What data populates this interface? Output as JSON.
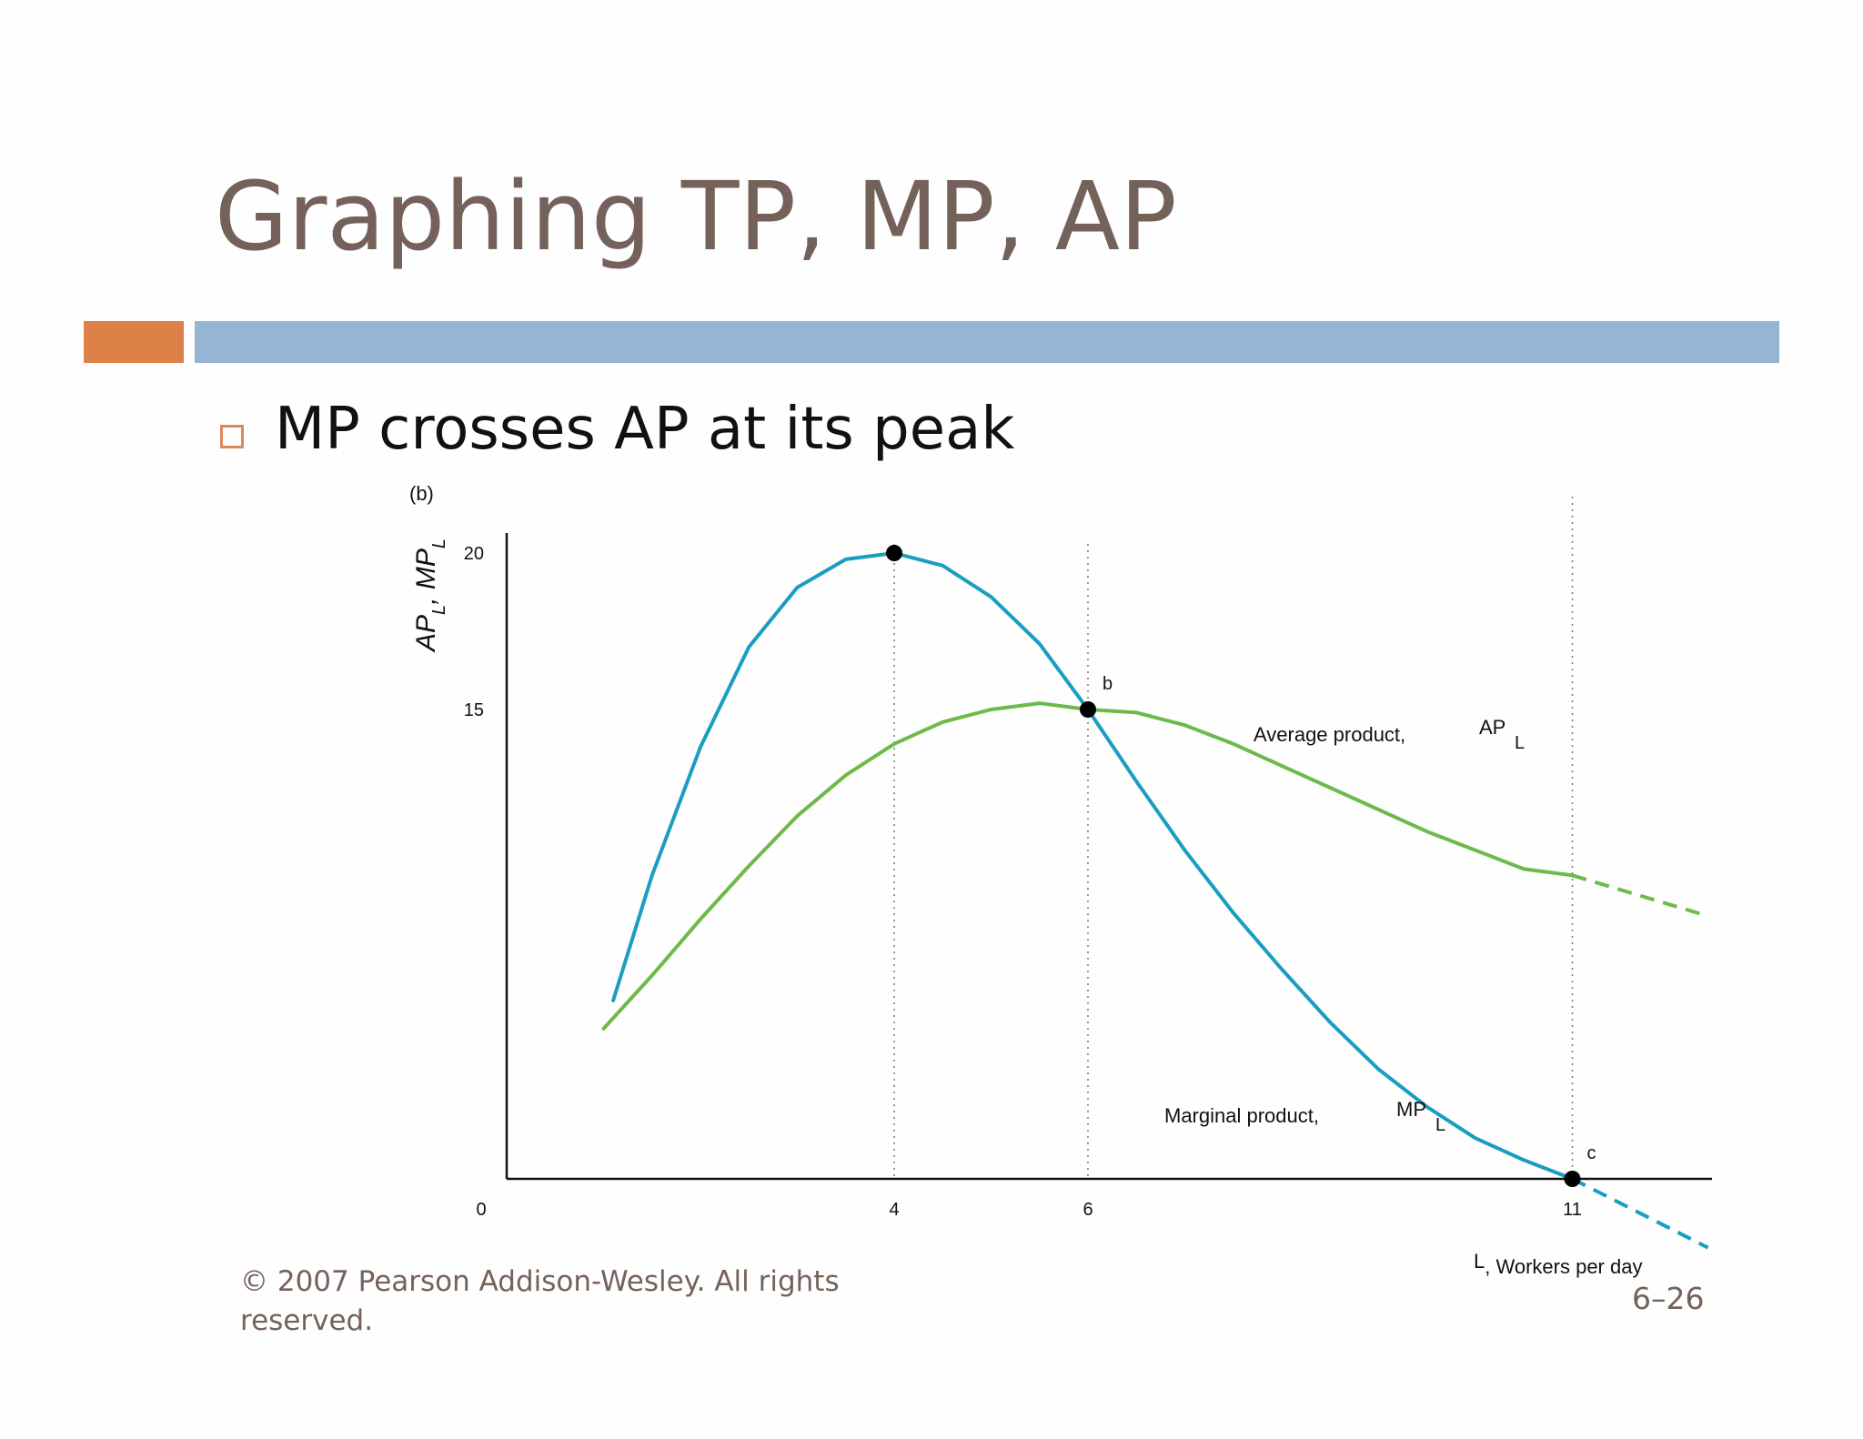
{
  "slide": {
    "title": "Graphing TP, MP, AP",
    "bullet": "MP crosses AP at its peak",
    "footer_line1": "© 2007 Pearson Addison-Wesley. All rights",
    "footer_line2": "reserved.",
    "slide_number": "6–26"
  },
  "colors": {
    "title": "#74625a",
    "orange": "#dd8148",
    "blue": "#96b5d3",
    "mp": "#1a9ec0",
    "ap": "#6cba4a"
  },
  "chart_data": {
    "type": "line",
    "panel_label": "(b)",
    "ylabel": {
      "main": "AP",
      "sub1": "L",
      "sep": ", MP",
      "sub2": "L"
    },
    "xlabel": {
      "sub": "L",
      "text": ", Workers per day"
    },
    "origin_label": "0",
    "xlim": [
      0,
      12.8
    ],
    "ylim": [
      0,
      20.6
    ],
    "x_ticks": [
      4,
      6,
      11
    ],
    "y_ticks": [
      15,
      20
    ],
    "series": [
      {
        "name": "Marginal product, MP_L",
        "label": "Marginal product,",
        "label_sym": "MP",
        "label_sub": "L",
        "color": "#1a9ec0",
        "x": [
          1.1,
          1.5,
          2.0,
          2.5,
          3.0,
          3.5,
          4.0,
          4.5,
          5.0,
          5.5,
          6.0,
          6.5,
          7.0,
          7.5,
          8.0,
          8.5,
          9.0,
          9.5,
          10.0,
          10.5,
          11.0
        ],
        "y": [
          5.7,
          9.7,
          13.8,
          17.0,
          18.9,
          19.8,
          20.0,
          19.6,
          18.6,
          17.1,
          15.0,
          12.7,
          10.5,
          8.5,
          6.7,
          5.0,
          3.5,
          2.3,
          1.3,
          0.6,
          0.0
        ],
        "extension": {
          "x": [
            11.0,
            12.4
          ],
          "y": [
            0.0,
            -2.2
          ]
        }
      },
      {
        "name": "Average product, AP_L",
        "label": "Average product,",
        "label_sym": "AP",
        "label_sub": "L",
        "color": "#6cba4a",
        "x": [
          1.0,
          1.5,
          2.0,
          2.5,
          3.0,
          3.5,
          4.0,
          4.5,
          5.0,
          5.5,
          6.0,
          6.5,
          7.0,
          7.5,
          8.0,
          8.5,
          9.0,
          9.5,
          10.0,
          10.5,
          11.0
        ],
        "y": [
          4.8,
          6.5,
          8.3,
          10.0,
          11.6,
          12.9,
          13.9,
          14.6,
          15.0,
          15.2,
          15.0,
          14.9,
          14.5,
          13.9,
          13.2,
          12.5,
          11.8,
          11.1,
          10.5,
          9.9,
          9.7
        ],
        "extension": {
          "x": [
            11.0,
            12.4
          ],
          "y": [
            9.7,
            8.4
          ]
        }
      }
    ],
    "points": [
      {
        "label": "",
        "x": 4,
        "y": 20
      },
      {
        "label": "b",
        "x": 6,
        "y": 15
      },
      {
        "label": "c",
        "x": 11,
        "y": 0
      }
    ],
    "guides": [
      4,
      6,
      11
    ]
  }
}
